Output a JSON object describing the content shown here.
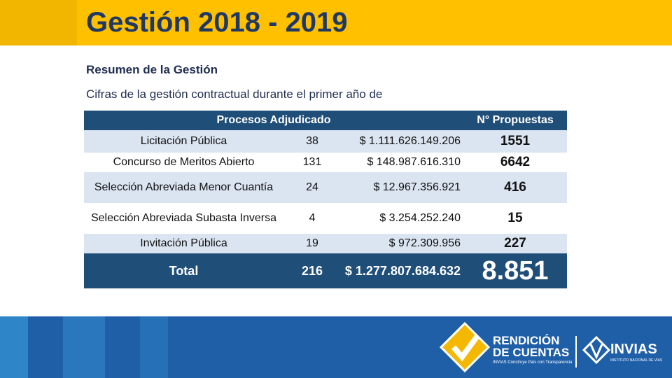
{
  "header": {
    "title": "Gestión 2018 - 2019"
  },
  "subtitle": "Resumen de la Gestión",
  "description": "Cifras de la gestión contractual durante el primer año de",
  "table": {
    "headers": [
      "Procesos Adjudicado",
      "N° Propuestas"
    ],
    "rows": [
      [
        "Licitación Pública",
        "38",
        "$ 1.111.626.149.206",
        "1551"
      ],
      [
        "Concurso de Meritos Abierto",
        "131",
        "$ 148.987.616.310",
        "6642"
      ],
      [
        "Selección Abreviada Menor Cuantía",
        "24",
        "$ 12.967.356.921",
        "416"
      ],
      [
        "Selección Abreviada Subasta Inversa",
        "4",
        "$ 3.254.252.240",
        "15"
      ],
      [
        "Invitación Pública",
        "19",
        "$ 972.309.956",
        "227"
      ]
    ],
    "total": [
      "Total",
      "216",
      "$ 1.277.807.684.632",
      "8.851"
    ]
  },
  "footer": {
    "logo1": [
      "RENDICIÓN",
      "DE CUENTAS"
    ],
    "tagline": "INVIAS Construye País con Transparencia",
    "logo2": "INVIAS",
    "logo2_sub": "INSTITUTO NACIONAL DE VÍAS"
  }
}
